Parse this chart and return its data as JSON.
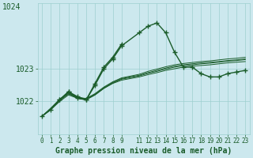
{
  "xlabel": "Graphe pression niveau de la mer (hPa)",
  "xlim": [
    -0.5,
    23.5
  ],
  "ylim": [
    1021.3,
    1025.0
  ],
  "yticks": [
    1022,
    1023
  ],
  "ytop_label": "1024",
  "xticks": [
    0,
    1,
    2,
    3,
    4,
    5,
    6,
    7,
    8,
    9,
    11,
    12,
    13,
    14,
    15,
    16,
    17,
    18,
    19,
    20,
    21,
    22,
    23
  ],
  "bg_color": "#cce8ee",
  "line_color": "#1a5c2a",
  "grid_color": "#9ecfcf",
  "main_x": [
    0,
    1,
    2,
    3,
    4,
    5,
    6,
    7,
    8,
    9,
    11,
    12,
    13,
    14,
    15,
    16,
    17,
    18,
    19,
    20,
    21,
    22,
    23
  ],
  "main_y": [
    1021.55,
    1021.75,
    1022.05,
    1022.3,
    1022.15,
    1022.05,
    1022.5,
    1023.0,
    1023.3,
    1023.7,
    1024.1,
    1024.3,
    1024.4,
    1024.1,
    1023.5,
    1023.05,
    1023.05,
    1022.85,
    1022.75,
    1022.75,
    1022.85,
    1022.9,
    1022.95
  ],
  "line1_x": [
    0,
    1,
    2,
    3,
    4,
    5,
    6,
    7,
    8,
    9,
    11,
    12,
    13,
    14,
    15,
    16,
    17,
    18,
    19,
    20,
    21,
    22,
    23
  ],
  "line1_y": [
    1021.55,
    1021.75,
    1022.0,
    1022.2,
    1022.1,
    1022.05,
    1022.2,
    1022.4,
    1022.55,
    1022.65,
    1022.75,
    1022.82,
    1022.88,
    1022.95,
    1023.0,
    1023.05,
    1023.08,
    1023.1,
    1023.12,
    1023.15,
    1023.18,
    1023.2,
    1023.22
  ],
  "line2_x": [
    0,
    1,
    2,
    3,
    4,
    5,
    6,
    7,
    8,
    9,
    11,
    12,
    13,
    14,
    15,
    16,
    17,
    18,
    19,
    20,
    21,
    22,
    23
  ],
  "line2_y": [
    1021.55,
    1021.78,
    1022.05,
    1022.25,
    1022.12,
    1022.08,
    1022.22,
    1022.42,
    1022.58,
    1022.7,
    1022.8,
    1022.88,
    1022.95,
    1023.02,
    1023.08,
    1023.12,
    1023.15,
    1023.18,
    1023.2,
    1023.22,
    1023.25,
    1023.27,
    1023.3
  ],
  "line3_x": [
    0,
    1,
    2,
    3,
    4,
    5,
    6,
    7,
    8,
    9,
    11,
    12,
    13,
    14,
    15,
    16,
    17,
    18,
    19,
    20,
    21,
    22,
    23
  ],
  "line3_y": [
    1021.55,
    1021.8,
    1022.07,
    1022.27,
    1022.13,
    1022.09,
    1022.24,
    1022.44,
    1022.6,
    1022.72,
    1022.83,
    1022.92,
    1022.99,
    1023.06,
    1023.12,
    1023.16,
    1023.19,
    1023.22,
    1023.24,
    1023.27,
    1023.3,
    1023.32,
    1023.35
  ],
  "line4_x": [
    0,
    1,
    2,
    3,
    4,
    5,
    6,
    7,
    8,
    9,
    11,
    12,
    13,
    14,
    15,
    16,
    17,
    18,
    19,
    20,
    21,
    22,
    23
  ],
  "line4_y": [
    1021.55,
    1021.76,
    1022.03,
    1022.23,
    1022.1,
    1022.06,
    1022.2,
    1022.4,
    1022.56,
    1022.68,
    1022.78,
    1022.86,
    1022.92,
    1022.99,
    1023.05,
    1023.09,
    1023.12,
    1023.15,
    1023.17,
    1023.2,
    1023.23,
    1023.25,
    1023.28
  ],
  "secondary_x": [
    2,
    3,
    4,
    5,
    6,
    7,
    8,
    9
  ],
  "secondary_y": [
    1022.05,
    1022.3,
    1022.1,
    1022.05,
    1022.55,
    1023.05,
    1023.35,
    1023.75
  ]
}
